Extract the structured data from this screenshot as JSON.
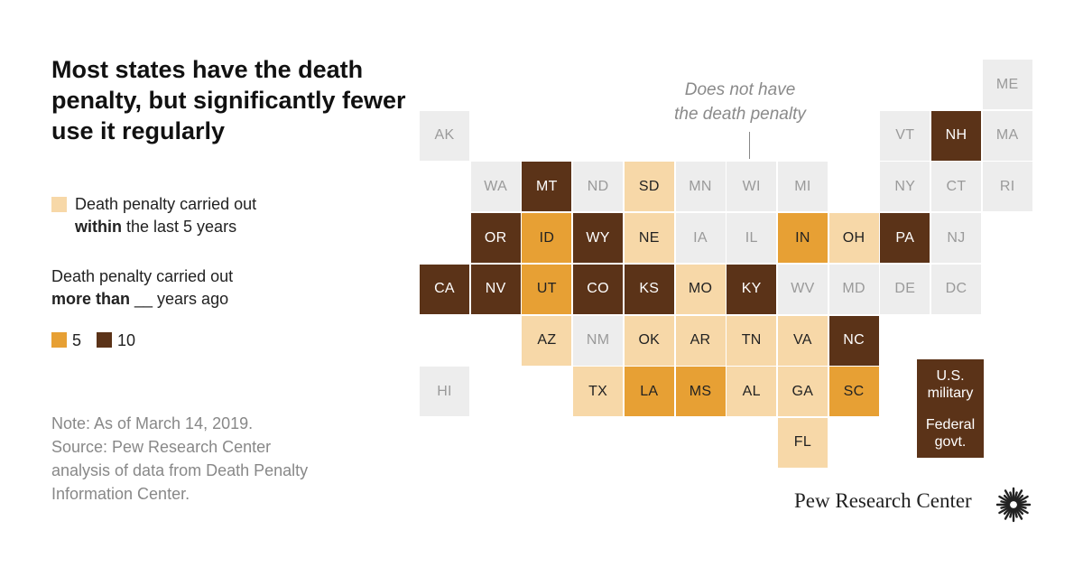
{
  "title": "Most states have the death penalty, but significantly fewer use it regularly",
  "legend": {
    "within_line1": "Death penalty carried out",
    "within_bold": "within",
    "within_rest": " the last 5 years",
    "more_line1": "Death penalty carried out",
    "more_bold": "more than",
    "more_rest": " __ years ago",
    "key_5": "5",
    "key_10": "10"
  },
  "annotation": {
    "line1": "Does not have",
    "line2": "the death penalty"
  },
  "note": {
    "line1": "Note: As of March 14, 2019.",
    "line2": "Source: Pew Research Center",
    "line3": "analysis of data from Death Penalty",
    "line4": "Information Center."
  },
  "branding": "Pew Research Center",
  "colors": {
    "none": "#ededed",
    "within": "#f7d8a8",
    "five": "#e7a034",
    "ten": "#5b3318"
  },
  "states": [
    {
      "abbr": "AK",
      "status": "none"
    },
    {
      "abbr": "ME",
      "status": "none"
    },
    {
      "abbr": "VT",
      "status": "none"
    },
    {
      "abbr": "NH",
      "status": "ten"
    },
    {
      "abbr": "MA",
      "status": "none"
    },
    {
      "abbr": "WA",
      "status": "none"
    },
    {
      "abbr": "MT",
      "status": "ten"
    },
    {
      "abbr": "ND",
      "status": "none"
    },
    {
      "abbr": "SD",
      "status": "within"
    },
    {
      "abbr": "MN",
      "status": "none"
    },
    {
      "abbr": "WI",
      "status": "none"
    },
    {
      "abbr": "MI",
      "status": "none"
    },
    {
      "abbr": "NY",
      "status": "none"
    },
    {
      "abbr": "CT",
      "status": "none"
    },
    {
      "abbr": "RI",
      "status": "none"
    },
    {
      "abbr": "OR",
      "status": "ten"
    },
    {
      "abbr": "ID",
      "status": "five"
    },
    {
      "abbr": "WY",
      "status": "ten"
    },
    {
      "abbr": "NE",
      "status": "within"
    },
    {
      "abbr": "IA",
      "status": "none"
    },
    {
      "abbr": "IL",
      "status": "none"
    },
    {
      "abbr": "IN",
      "status": "five"
    },
    {
      "abbr": "OH",
      "status": "within"
    },
    {
      "abbr": "PA",
      "status": "ten"
    },
    {
      "abbr": "NJ",
      "status": "none"
    },
    {
      "abbr": "CA",
      "status": "ten"
    },
    {
      "abbr": "NV",
      "status": "ten"
    },
    {
      "abbr": "UT",
      "status": "five"
    },
    {
      "abbr": "CO",
      "status": "ten"
    },
    {
      "abbr": "KS",
      "status": "ten"
    },
    {
      "abbr": "MO",
      "status": "within"
    },
    {
      "abbr": "KY",
      "status": "ten"
    },
    {
      "abbr": "WV",
      "status": "none"
    },
    {
      "abbr": "MD",
      "status": "none"
    },
    {
      "abbr": "DE",
      "status": "none"
    },
    {
      "abbr": "DC",
      "status": "none"
    },
    {
      "abbr": "AZ",
      "status": "within"
    },
    {
      "abbr": "NM",
      "status": "none"
    },
    {
      "abbr": "OK",
      "status": "within"
    },
    {
      "abbr": "AR",
      "status": "within"
    },
    {
      "abbr": "TN",
      "status": "within"
    },
    {
      "abbr": "VA",
      "status": "within"
    },
    {
      "abbr": "NC",
      "status": "ten"
    },
    {
      "abbr": "HI",
      "status": "none"
    },
    {
      "abbr": "TX",
      "status": "within"
    },
    {
      "abbr": "LA",
      "status": "five"
    },
    {
      "abbr": "MS",
      "status": "five"
    },
    {
      "abbr": "AL",
      "status": "within"
    },
    {
      "abbr": "GA",
      "status": "within"
    },
    {
      "abbr": "SC",
      "status": "five"
    },
    {
      "abbr": "FL",
      "status": "within"
    }
  ],
  "federal": [
    {
      "label": "U.S. military",
      "status": "ten"
    },
    {
      "label": "Federal govt.",
      "status": "ten"
    }
  ]
}
